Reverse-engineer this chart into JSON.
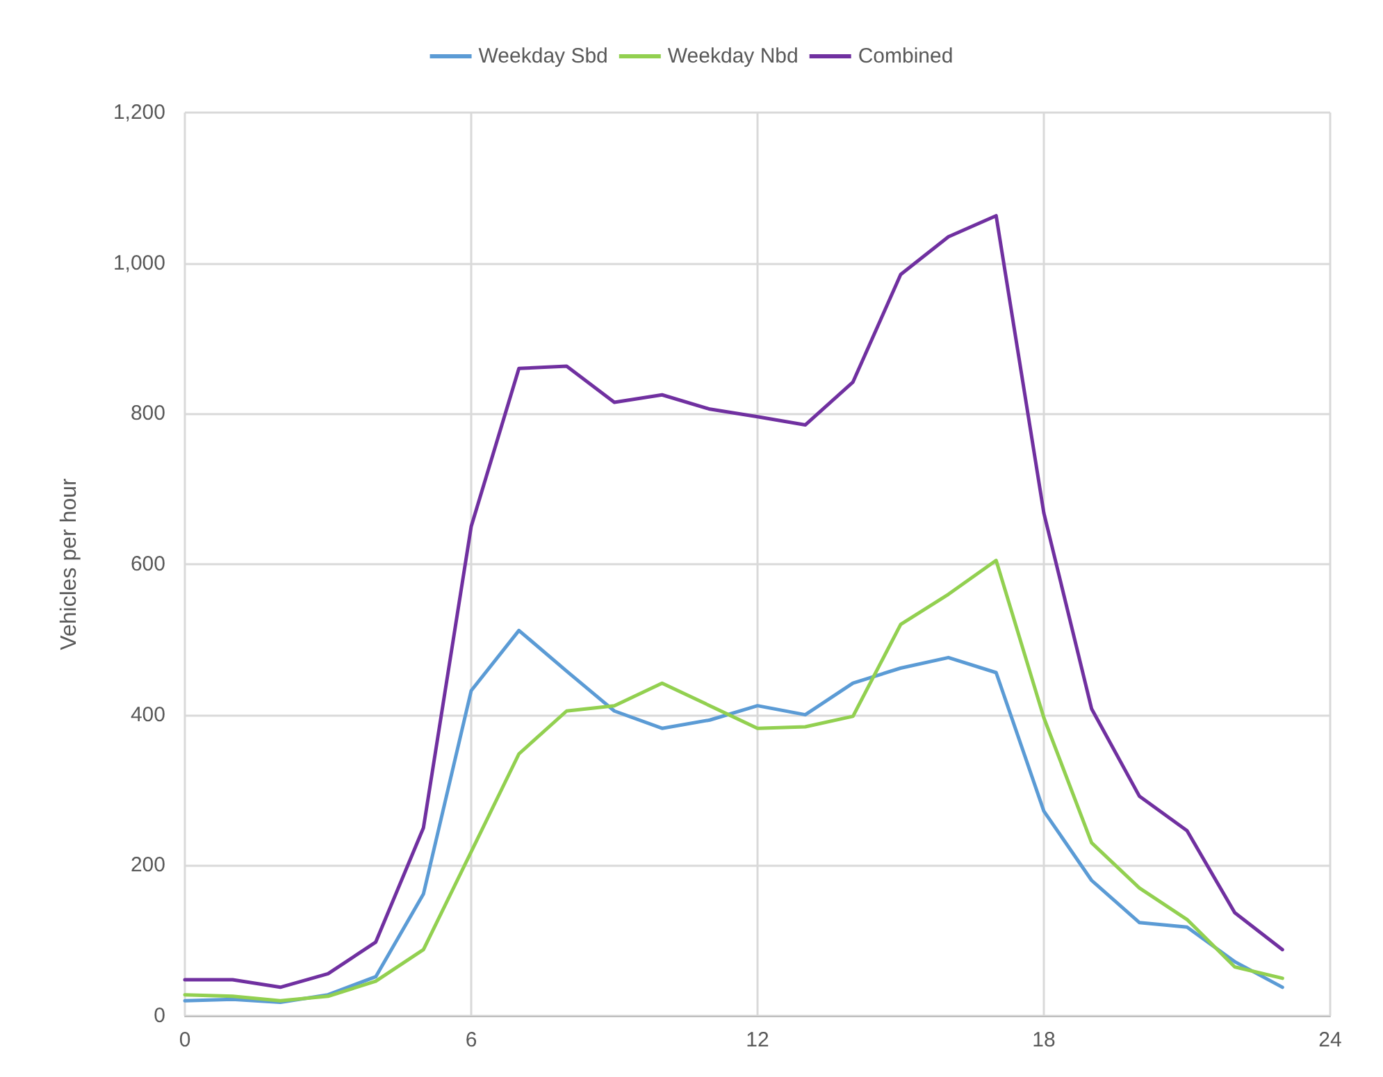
{
  "chart_data": {
    "type": "line",
    "ylabel": "Vehicles per hour",
    "x": [
      0,
      1,
      2,
      3,
      4,
      5,
      6,
      7,
      8,
      9,
      10,
      11,
      12,
      13,
      14,
      15,
      16,
      17,
      18,
      19,
      20,
      21,
      22,
      23
    ],
    "series": [
      {
        "name": "Weekday Sbd",
        "color": "#5b9bd5",
        "values": [
          20,
          22,
          18,
          28,
          52,
          162,
          432,
          512,
          458,
          405,
          382,
          393,
          412,
          400,
          442,
          462,
          476,
          456,
          272,
          180,
          124,
          118,
          72,
          38
        ]
      },
      {
        "name": "Weekday Nbd",
        "color": "#92d050",
        "values": [
          28,
          26,
          20,
          26,
          46,
          88,
          218,
          348,
          405,
          412,
          442,
          412,
          382,
          384,
          398,
          520,
          560,
          605,
          396,
          230,
          170,
          128,
          65,
          50
        ]
      },
      {
        "name": "Combined",
        "color": "#7030a0",
        "values": [
          48,
          48,
          38,
          56,
          98,
          250,
          650,
          860,
          863,
          815,
          825,
          806,
          796,
          785,
          842,
          985,
          1035,
          1063,
          668,
          408,
          292,
          246,
          137,
          88
        ]
      }
    ],
    "xlim": [
      0,
      24
    ],
    "xticks": [
      0,
      6,
      12,
      18,
      24
    ],
    "ylim": [
      0,
      1200
    ],
    "yticks": [
      0,
      {
        "value": 200,
        "label": "200"
      },
      {
        "value": 400,
        "label": "400"
      },
      {
        "value": 600,
        "label": "600"
      },
      {
        "value": 800,
        "label": "800"
      },
      {
        "value": 1000,
        "label": "1,000"
      },
      {
        "value": 1200,
        "label": "1,200"
      }
    ],
    "grid": true,
    "legend": "top",
    "marker": "none",
    "line_style": "solid"
  }
}
